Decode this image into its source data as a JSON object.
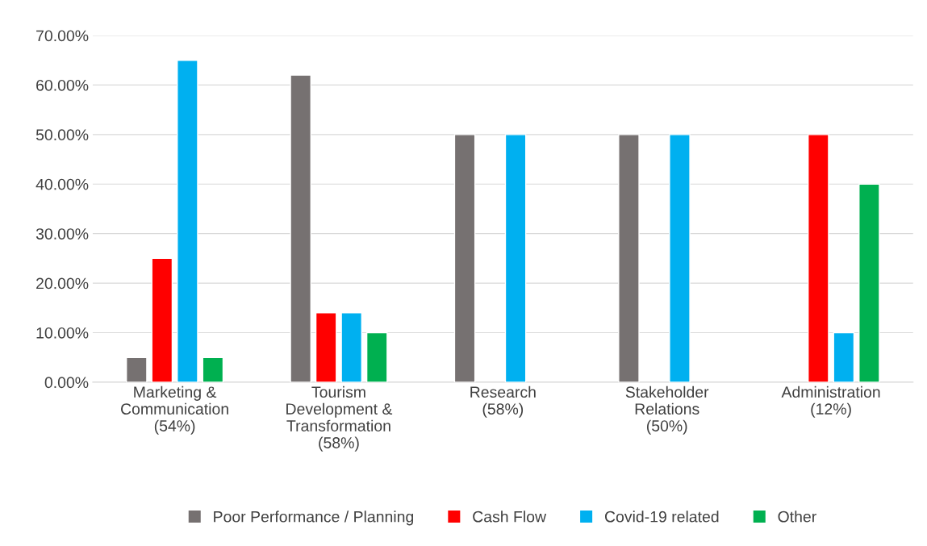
{
  "chart_data": {
    "type": "bar",
    "categories": [
      "Marketing &\nCommunication\n(54%)",
      "Tourism\nDevelopment &\nTransformation\n(58%)",
      "Research\n(58%)",
      "Stakeholder\nRelations\n(50%)",
      "Administration\n(12%)"
    ],
    "series": [
      {
        "name": "Poor Performance / Planning",
        "color": "#767171",
        "values": [
          5,
          62,
          50,
          50,
          null
        ]
      },
      {
        "name": "Cash Flow",
        "color": "#ff0000",
        "values": [
          25,
          14,
          null,
          null,
          50
        ]
      },
      {
        "name": "Covid-19 related",
        "color": "#00b0f0",
        "values": [
          65,
          14,
          50,
          50,
          10
        ]
      },
      {
        "name": "Other",
        "color": "#00b050",
        "values": [
          5,
          10,
          null,
          null,
          40
        ]
      }
    ],
    "ylim": [
      0,
      70
    ],
    "yticks": [
      {
        "value": 0,
        "label": "0.00%"
      },
      {
        "value": 10,
        "label": "10.00%"
      },
      {
        "value": 20,
        "label": "20.00%"
      },
      {
        "value": 30,
        "label": "30.00%"
      },
      {
        "value": 40,
        "label": "40.00%"
      },
      {
        "value": 50,
        "label": "50.00%"
      },
      {
        "value": 60,
        "label": "60.00%"
      },
      {
        "value": 70,
        "label": "70.00%"
      }
    ],
    "grid": "y",
    "legend": "bottom"
  }
}
